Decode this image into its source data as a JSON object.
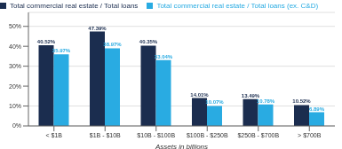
{
  "chart_data": {
    "type": "bar",
    "xlabel": "Assets in billions",
    "categories": [
      "< $1B",
      "$1B - $10B",
      "$10B - $100B",
      "$100B - $250B",
      "$250B - $700B",
      "> $700B"
    ],
    "series": [
      {
        "name": "Total commercial real estate / Total loans",
        "color": "#1b2d4f",
        "values": [
          40.52,
          47.39,
          40.35,
          14.01,
          13.49,
          10.52
        ],
        "value_labels": [
          "40.52%",
          "47.39%",
          "40.35%",
          "14.01%",
          "13.49%",
          "10.52%"
        ]
      },
      {
        "name": "Total commercial real estate / Total loans (ex. C&D)",
        "color": "#29abe2",
        "values": [
          35.97,
          38.97,
          33.04,
          10.07,
          10.78,
          6.89
        ],
        "value_labels": [
          "35.97%",
          "38.97%",
          "33.04%",
          "10.07%",
          "10.78%",
          "6.89%"
        ]
      }
    ],
    "ylim": [
      0,
      57
    ],
    "yticks": [
      {
        "value": 0,
        "label": "0%"
      },
      {
        "value": 10,
        "label": "10%"
      },
      {
        "value": 20,
        "label": "20%"
      },
      {
        "value": 30,
        "label": "30%"
      },
      {
        "value": 40,
        "label": "40%"
      },
      {
        "value": 50,
        "label": "50%"
      }
    ],
    "grid": true,
    "legend": "upper left",
    "data_labels": true
  }
}
